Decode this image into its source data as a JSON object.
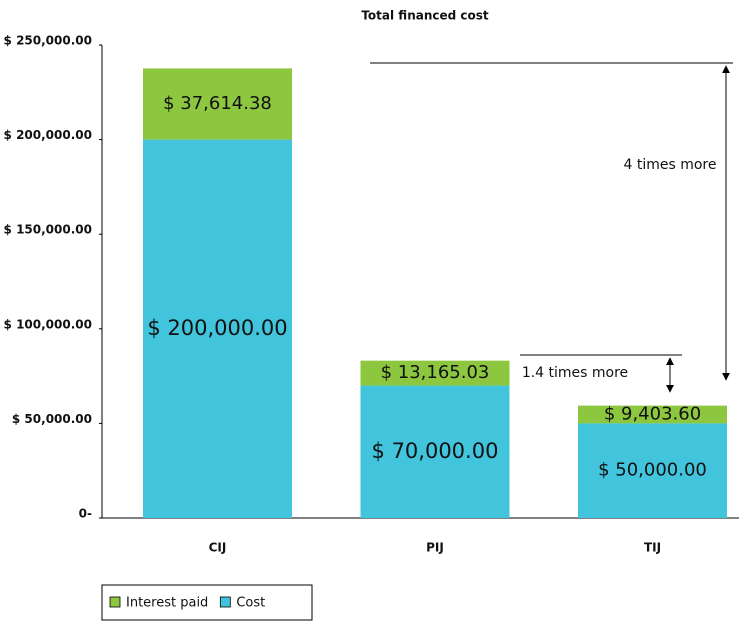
{
  "chart_data": {
    "type": "stacked_bar",
    "title": "Total financed cost",
    "categories": [
      "CIJ",
      "PIJ",
      "TIJ"
    ],
    "series": [
      {
        "name": "Cost",
        "color": "#41c4dc",
        "values": [
          200000,
          70000,
          50000
        ],
        "value_labels": [
          "$ 200,000.00",
          "$ 70,000.00",
          "$ 50,000.00"
        ]
      },
      {
        "name": "Interest paid",
        "color": "#8dc63f",
        "values": [
          37614.38,
          13165.03,
          9403.6
        ],
        "value_labels": [
          "$ 37,614.38",
          "$ 13,165.03",
          "$ 9,403.60"
        ]
      }
    ],
    "ylim": [
      0,
      250000
    ],
    "yticks": [
      {
        "value": 0,
        "label": "0-"
      },
      {
        "value": 50000,
        "label": "$ 50,000.00"
      },
      {
        "value": 100000,
        "label": "$ 100,000.00"
      },
      {
        "value": 150000,
        "label": "$ 150,000.00"
      },
      {
        "value": 200000,
        "label": "$ 200,000.00"
      },
      {
        "value": 250000,
        "label": "$ 250,000.00"
      }
    ],
    "annotations": [
      "4 times more",
      "1.4 times more"
    ],
    "grid": false
  }
}
